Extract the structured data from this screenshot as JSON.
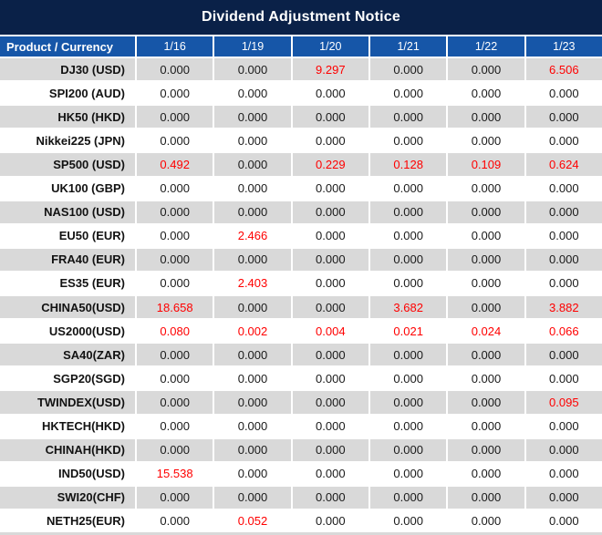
{
  "title": "Dividend Adjustment Notice",
  "colors": {
    "title_bg": "#0a2148",
    "header_bg": "#1656a8",
    "row_alt_bg": "#d9d9d9",
    "row_bg": "#ffffff",
    "highlight": "#ff0000",
    "text": "#1a1a1a",
    "grid_line": "#ffffff"
  },
  "chart_data": {
    "type": "table",
    "title": "Dividend Adjustment Notice",
    "columns": [
      "Product / Currency",
      "1/16",
      "1/19",
      "1/20",
      "1/21",
      "1/22",
      "1/23"
    ],
    "highlight_color_meaning": "non-zero dividend adjustment shown in red",
    "rows": [
      {
        "product": "DJ30 (USD)",
        "values": [
          "0.000",
          "0.000",
          "9.297",
          "0.000",
          "0.000",
          "6.506"
        ],
        "red": [
          false,
          false,
          true,
          false,
          false,
          true
        ]
      },
      {
        "product": "SPI200 (AUD)",
        "values": [
          "0.000",
          "0.000",
          "0.000",
          "0.000",
          "0.000",
          "0.000"
        ],
        "red": [
          false,
          false,
          false,
          false,
          false,
          false
        ]
      },
      {
        "product": "HK50 (HKD)",
        "values": [
          "0.000",
          "0.000",
          "0.000",
          "0.000",
          "0.000",
          "0.000"
        ],
        "red": [
          false,
          false,
          false,
          false,
          false,
          false
        ]
      },
      {
        "product": "Nikkei225 (JPN)",
        "values": [
          "0.000",
          "0.000",
          "0.000",
          "0.000",
          "0.000",
          "0.000"
        ],
        "red": [
          false,
          false,
          false,
          false,
          false,
          false
        ]
      },
      {
        "product": "SP500 (USD)",
        "values": [
          "0.492",
          "0.000",
          "0.229",
          "0.128",
          "0.109",
          "0.624"
        ],
        "red": [
          true,
          false,
          true,
          true,
          true,
          true
        ]
      },
      {
        "product": "UK100 (GBP)",
        "values": [
          "0.000",
          "0.000",
          "0.000",
          "0.000",
          "0.000",
          "0.000"
        ],
        "red": [
          false,
          false,
          false,
          false,
          false,
          false
        ]
      },
      {
        "product": "NAS100 (USD)",
        "values": [
          "0.000",
          "0.000",
          "0.000",
          "0.000",
          "0.000",
          "0.000"
        ],
        "red": [
          false,
          false,
          false,
          false,
          false,
          false
        ]
      },
      {
        "product": "EU50 (EUR)",
        "values": [
          "0.000",
          "2.466",
          "0.000",
          "0.000",
          "0.000",
          "0.000"
        ],
        "red": [
          false,
          true,
          false,
          false,
          false,
          false
        ]
      },
      {
        "product": "FRA40 (EUR)",
        "values": [
          "0.000",
          "0.000",
          "0.000",
          "0.000",
          "0.000",
          "0.000"
        ],
        "red": [
          false,
          false,
          false,
          false,
          false,
          false
        ]
      },
      {
        "product": "ES35 (EUR)",
        "values": [
          "0.000",
          "2.403",
          "0.000",
          "0.000",
          "0.000",
          "0.000"
        ],
        "red": [
          false,
          true,
          false,
          false,
          false,
          false
        ]
      },
      {
        "product": "CHINA50(USD)",
        "values": [
          "18.658",
          "0.000",
          "0.000",
          "3.682",
          "0.000",
          "3.882"
        ],
        "red": [
          true,
          false,
          false,
          true,
          false,
          true
        ]
      },
      {
        "product": "US2000(USD)",
        "values": [
          "0.080",
          "0.002",
          "0.004",
          "0.021",
          "0.024",
          "0.066"
        ],
        "red": [
          true,
          true,
          true,
          true,
          true,
          true
        ]
      },
      {
        "product": "SA40(ZAR)",
        "values": [
          "0.000",
          "0.000",
          "0.000",
          "0.000",
          "0.000",
          "0.000"
        ],
        "red": [
          false,
          false,
          false,
          false,
          false,
          false
        ]
      },
      {
        "product": "SGP20(SGD)",
        "values": [
          "0.000",
          "0.000",
          "0.000",
          "0.000",
          "0.000",
          "0.000"
        ],
        "red": [
          false,
          false,
          false,
          false,
          false,
          false
        ]
      },
      {
        "product": "TWINDEX(USD)",
        "values": [
          "0.000",
          "0.000",
          "0.000",
          "0.000",
          "0.000",
          "0.095"
        ],
        "red": [
          false,
          false,
          false,
          false,
          false,
          true
        ]
      },
      {
        "product": "HKTECH(HKD)",
        "values": [
          "0.000",
          "0.000",
          "0.000",
          "0.000",
          "0.000",
          "0.000"
        ],
        "red": [
          false,
          false,
          false,
          false,
          false,
          false
        ]
      },
      {
        "product": "CHINAH(HKD)",
        "values": [
          "0.000",
          "0.000",
          "0.000",
          "0.000",
          "0.000",
          "0.000"
        ],
        "red": [
          false,
          false,
          false,
          false,
          false,
          false
        ]
      },
      {
        "product": "IND50(USD)",
        "values": [
          "15.538",
          "0.000",
          "0.000",
          "0.000",
          "0.000",
          "0.000"
        ],
        "red": [
          true,
          false,
          false,
          false,
          false,
          false
        ]
      },
      {
        "product": "SWI20(CHF)",
        "values": [
          "0.000",
          "0.000",
          "0.000",
          "0.000",
          "0.000",
          "0.000"
        ],
        "red": [
          false,
          false,
          false,
          false,
          false,
          false
        ]
      },
      {
        "product": "NETH25(EUR)",
        "values": [
          "0.000",
          "0.052",
          "0.000",
          "0.000",
          "0.000",
          "0.000"
        ],
        "red": [
          false,
          true,
          false,
          false,
          false,
          false
        ]
      }
    ]
  }
}
